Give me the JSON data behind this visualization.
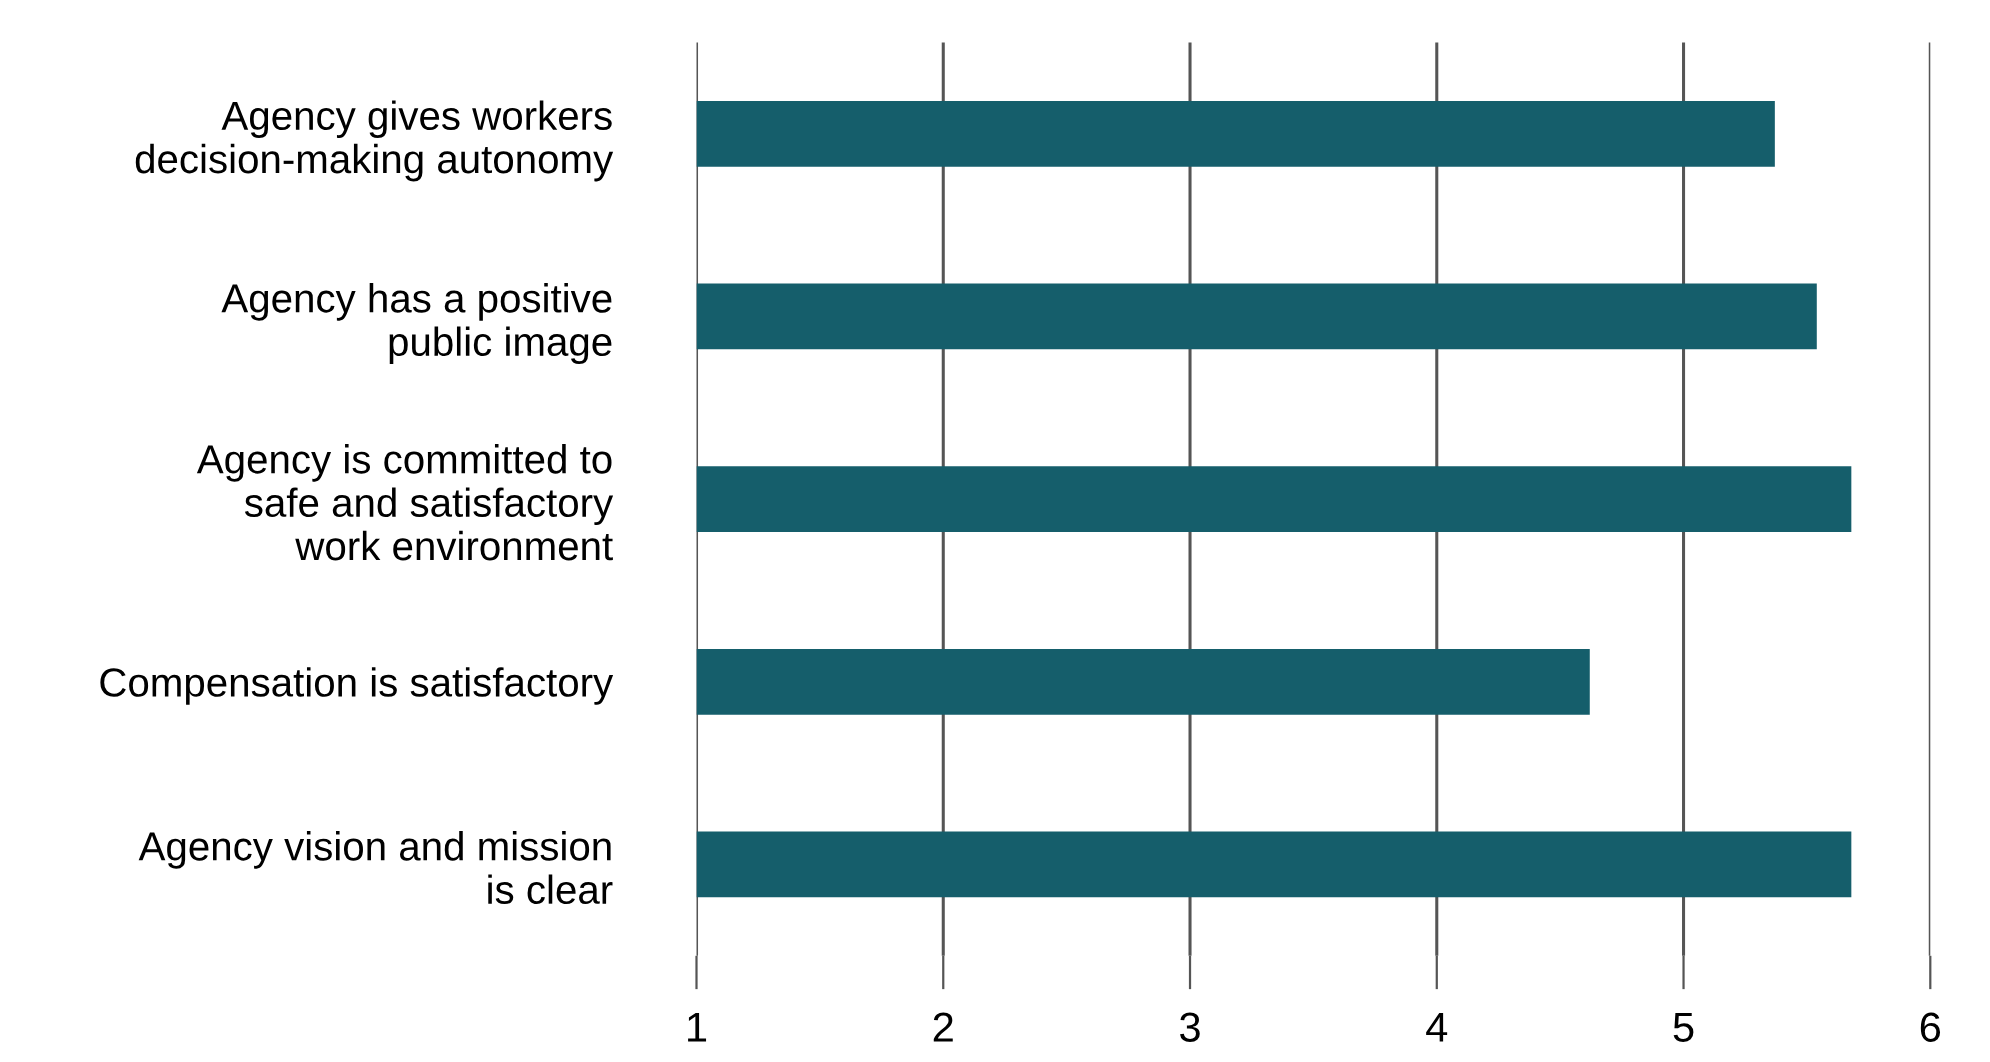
{
  "chart_data": {
    "type": "bar",
    "orientation": "horizontal",
    "categories": [
      "Agency gives workers\ndecision-making autonomy",
      "Agency has a positive\npublic image",
      "Agency is committed to\nsafe and satisfactory\nwork environment",
      "Compensation is satisfactory",
      "Agency vision and mission\nis clear"
    ],
    "values": [
      5.37,
      5.54,
      5.68,
      4.62,
      5.68
    ],
    "color": "#155e6b",
    "xlim": [
      1,
      6
    ],
    "xticks": [
      1,
      2,
      3,
      4,
      5,
      6
    ],
    "grid": "x",
    "legend": false
  }
}
